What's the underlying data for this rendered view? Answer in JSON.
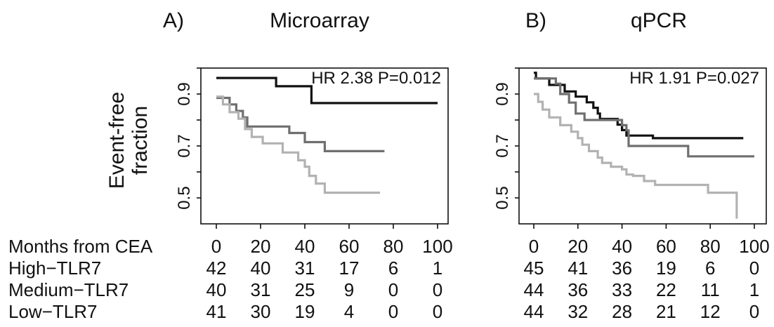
{
  "shared": {
    "ylabel_line1": "Event-free",
    "ylabel_line2": "fraction",
    "risk_table_row_labels": [
      "Months from CEA",
      "High−TLR7",
      "Medium−TLR7",
      "Low−TLR7"
    ]
  },
  "chart_data": [
    {
      "type": "line",
      "panel": "A)",
      "title": "Microarray",
      "annotation": "HR 2.38 P=0.012",
      "xlabel": "",
      "ylabel": "Event-free fraction",
      "xlim": [
        0,
        100
      ],
      "ylim": [
        0.4,
        1.0
      ],
      "x_ticks": [
        "0",
        "20",
        "40",
        "60",
        "80",
        "100"
      ],
      "y_ticks": [
        "0.5",
        "0.7",
        "0.9"
      ],
      "legend": "none",
      "colors": [
        "#111111",
        "#6f6f6f",
        "#b2b2b2"
      ],
      "series": [
        {
          "x": [
            0,
            27,
            27,
            43,
            43,
            100
          ],
          "y": [
            0.962,
            0.962,
            0.93,
            0.93,
            0.865,
            0.865
          ]
        },
        {
          "x": [
            0,
            6,
            6,
            9,
            9,
            12,
            12,
            14,
            14,
            33,
            33,
            40,
            40,
            49,
            49,
            76
          ],
          "y": [
            0.885,
            0.885,
            0.86,
            0.86,
            0.835,
            0.835,
            0.81,
            0.81,
            0.775,
            0.775,
            0.75,
            0.75,
            0.715,
            0.715,
            0.68,
            0.68
          ]
        },
        {
          "x": [
            0,
            3,
            3,
            6,
            6,
            10,
            10,
            13,
            13,
            16,
            16,
            21,
            21,
            30,
            30,
            37,
            37,
            40,
            40,
            42,
            42,
            45,
            45,
            49,
            49,
            74
          ],
          "y": [
            0.89,
            0.89,
            0.86,
            0.86,
            0.83,
            0.83,
            0.805,
            0.805,
            0.765,
            0.765,
            0.735,
            0.735,
            0.71,
            0.71,
            0.675,
            0.675,
            0.645,
            0.645,
            0.62,
            0.62,
            0.585,
            0.585,
            0.555,
            0.555,
            0.52,
            0.52
          ]
        }
      ],
      "risk_table": {
        "months": [
          "0",
          "20",
          "40",
          "60",
          "80",
          "100"
        ],
        "rows": [
          [
            "42",
            "40",
            "31",
            "17",
            "6",
            "1"
          ],
          [
            "40",
            "31",
            "25",
            "9",
            "0",
            "0"
          ],
          [
            "41",
            "30",
            "19",
            "4",
            "0",
            "0"
          ]
        ]
      }
    },
    {
      "type": "line",
      "panel": "B)",
      "title": "qPCR",
      "annotation": "HR 1.91 P=0.027",
      "xlabel": "",
      "ylabel": "",
      "xlim": [
        0,
        100
      ],
      "ylim": [
        0.4,
        1.0
      ],
      "x_ticks": [
        "0",
        "20",
        "40",
        "60",
        "80",
        "100"
      ],
      "y_ticks": [
        "0.5",
        "0.7",
        "0.9"
      ],
      "legend": "none",
      "colors": [
        "#111111",
        "#6f6f6f",
        "#b2b2b2"
      ],
      "series": [
        {
          "x": [
            0,
            1,
            1,
            7,
            7,
            14,
            14,
            19,
            19,
            24,
            24,
            27,
            27,
            29,
            29,
            30,
            30,
            38,
            38,
            40,
            40,
            42,
            42,
            47,
            47,
            54,
            54,
            95
          ],
          "y": [
            0.982,
            0.982,
            0.96,
            0.96,
            0.935,
            0.935,
            0.91,
            0.91,
            0.89,
            0.89,
            0.868,
            0.868,
            0.847,
            0.847,
            0.825,
            0.825,
            0.804,
            0.804,
            0.782,
            0.782,
            0.761,
            0.761,
            0.74,
            0.74,
            0.74,
            0.74,
            0.73,
            0.73
          ]
        },
        {
          "x": [
            0,
            10,
            10,
            12,
            12,
            16,
            16,
            19,
            19,
            23,
            23,
            40,
            40,
            42,
            42,
            43,
            43,
            70,
            70,
            100
          ],
          "y": [
            0.96,
            0.96,
            0.94,
            0.94,
            0.9,
            0.9,
            0.867,
            0.867,
            0.825,
            0.825,
            0.8,
            0.8,
            0.78,
            0.78,
            0.76,
            0.76,
            0.7,
            0.7,
            0.66,
            0.66
          ]
        },
        {
          "x": [
            0,
            2,
            2,
            4,
            4,
            7,
            7,
            12,
            12,
            17,
            17,
            20,
            20,
            22,
            22,
            25,
            25,
            29,
            29,
            31,
            31,
            35,
            35,
            40,
            40,
            42,
            42,
            45,
            45,
            50,
            50,
            55,
            55,
            79,
            79,
            90,
            90,
            92,
            92
          ],
          "y": [
            0.9,
            0.9,
            0.87,
            0.87,
            0.84,
            0.84,
            0.81,
            0.81,
            0.78,
            0.78,
            0.755,
            0.755,
            0.73,
            0.73,
            0.705,
            0.705,
            0.68,
            0.68,
            0.655,
            0.655,
            0.635,
            0.635,
            0.62,
            0.62,
            0.61,
            0.61,
            0.59,
            0.59,
            0.585,
            0.585,
            0.565,
            0.565,
            0.55,
            0.55,
            0.52,
            0.52,
            0.52,
            0.52,
            0.42
          ]
        }
      ],
      "risk_table": {
        "months": [
          "0",
          "20",
          "40",
          "60",
          "80",
          "100"
        ],
        "rows": [
          [
            "45",
            "41",
            "36",
            "19",
            "6",
            "0"
          ],
          [
            "44",
            "36",
            "33",
            "22",
            "11",
            "1"
          ],
          [
            "44",
            "32",
            "28",
            "21",
            "12",
            "0"
          ]
        ]
      }
    }
  ]
}
